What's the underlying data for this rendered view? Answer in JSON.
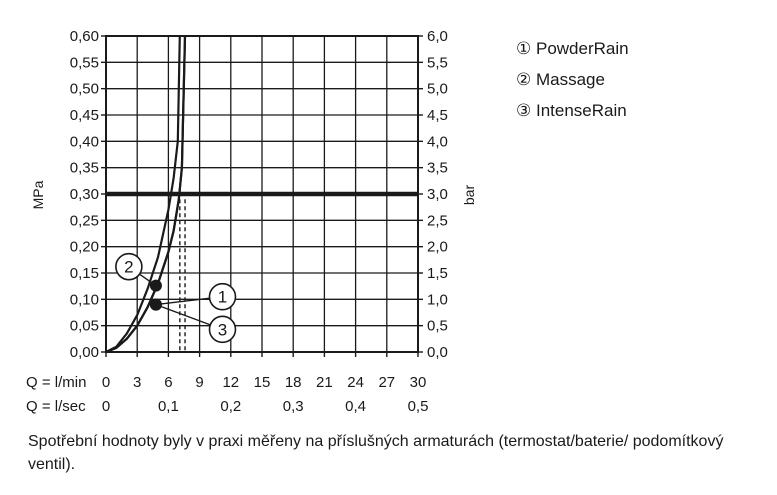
{
  "chart_data": {
    "type": "line",
    "left_axis": {
      "label": "MPa",
      "min": 0,
      "max": 0.6,
      "ticks": [
        "0,00",
        "0,05",
        "0,10",
        "0,15",
        "0,20",
        "0,25",
        "0,30",
        "0,35",
        "0,40",
        "0,45",
        "0,50",
        "0,55",
        "0,60"
      ]
    },
    "right_axis": {
      "label": "bar",
      "min": 0,
      "max": 6,
      "ticks": [
        "0,0",
        "0,5",
        "1,0",
        "1,5",
        "2,0",
        "2,5",
        "3,0",
        "3,5",
        "4,0",
        "4,5",
        "5,0",
        "5,5",
        "6,0"
      ]
    },
    "x_axis": {
      "min": 0,
      "max": 30,
      "label_lmin": "Q = l/min",
      "ticks_lmin": [
        "0",
        "3",
        "6",
        "9",
        "12",
        "15",
        "18",
        "21",
        "24",
        "27",
        "30"
      ],
      "label_lsec": "Q = l/sec",
      "ticks_lsec": [
        "0",
        "0,1",
        "0,2",
        "0,3",
        "0,4",
        "0,5"
      ]
    },
    "grid": true,
    "reference_line": {
      "y": 0.3
    },
    "series": [
      {
        "marker": "1",
        "x": [
          0,
          1,
          2,
          3,
          4,
          5,
          6,
          6.5,
          7,
          7.3,
          7.6
        ],
        "y": [
          0,
          0.008,
          0.025,
          0.05,
          0.085,
          0.13,
          0.19,
          0.23,
          0.29,
          0.35,
          0.6
        ]
      },
      {
        "marker": "2",
        "x": [
          0,
          1,
          2,
          3,
          4,
          5,
          5.5,
          6,
          6.5,
          6.9,
          7.1
        ],
        "y": [
          0,
          0.01,
          0.035,
          0.07,
          0.12,
          0.18,
          0.225,
          0.27,
          0.33,
          0.4,
          0.6
        ]
      },
      {
        "marker": "3",
        "x": [
          0,
          1,
          2,
          3,
          4,
          5,
          6,
          6.5,
          7,
          7.3,
          7.6
        ],
        "y": [
          0,
          0.008,
          0.025,
          0.05,
          0.085,
          0.13,
          0.19,
          0.23,
          0.29,
          0.35,
          0.6
        ]
      }
    ],
    "points": [
      {
        "marker": "2",
        "x": 4.8,
        "y": 0.126
      },
      {
        "marker": "1",
        "x": 4.8,
        "y": 0.09
      },
      {
        "marker": "3",
        "x": 4.8,
        "y": 0.09
      }
    ],
    "flow_lines": [
      7.1,
      7.6
    ],
    "callouts": [
      {
        "marker": "2",
        "label_x": 2.2,
        "label_y": 0.162
      },
      {
        "marker": "1",
        "label_x": 11.2,
        "label_y": 0.105
      },
      {
        "marker": "3",
        "label_x": 11.2,
        "label_y": 0.043
      }
    ]
  },
  "legend": [
    {
      "marker": "①",
      "name": "PowderRain"
    },
    {
      "marker": "②",
      "name": "Massage"
    },
    {
      "marker": "③",
      "name": "IntenseRain"
    }
  ],
  "caption": "Spotřební hodnoty byly v praxi měřeny na příslušných armaturách (termostat/baterie/ podomítkový ventil)."
}
